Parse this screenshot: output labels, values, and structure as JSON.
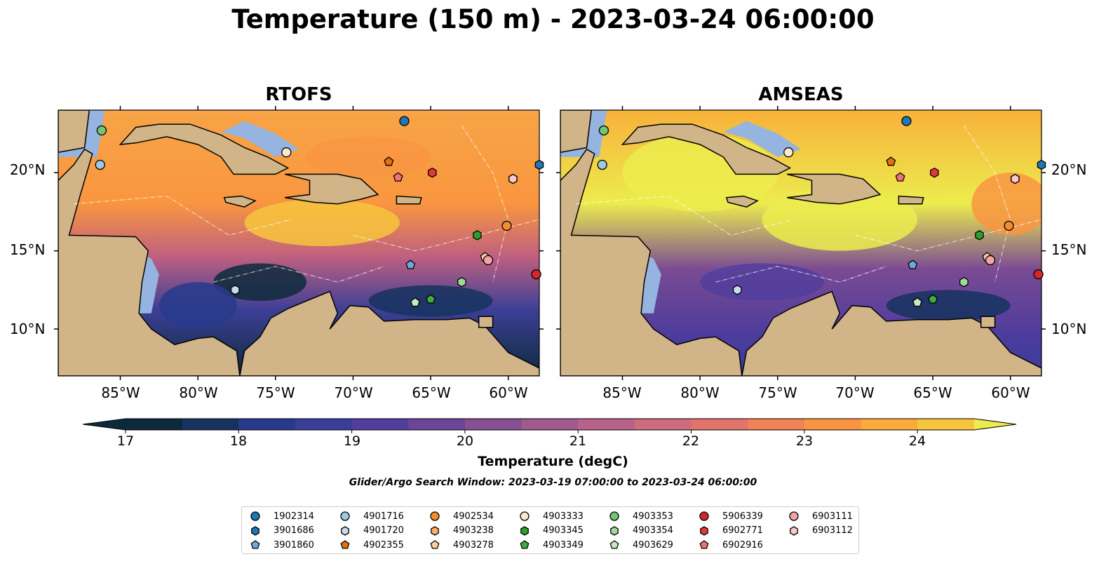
{
  "suptitle": "Temperature (150 m) - 2023-03-24 06:00:00",
  "panels": [
    {
      "title": "RTOFS",
      "model": "RTOFS"
    },
    {
      "title": "AMSEAS",
      "model": "AMSEAS"
    }
  ],
  "axes": {
    "lat_labels": [
      "20°N",
      "15°N",
      "10°N"
    ],
    "lon_labels": [
      "85°W",
      "80°W",
      "75°W",
      "70°W",
      "65°W",
      "60°W"
    ]
  },
  "colorbar": {
    "label": "Temperature (degC)",
    "ticks": [
      "17",
      "18",
      "19",
      "20",
      "21",
      "22",
      "23",
      "24"
    ],
    "colors": [
      "#0d2a3c",
      "#16325f",
      "#283a8c",
      "#3b3d9a",
      "#523e9c",
      "#6c4598",
      "#864f93",
      "#a05a8d",
      "#b8628a",
      "#cf6b7e",
      "#e1756e",
      "#f08255",
      "#f99542",
      "#fbab3a",
      "#f7c43d",
      "#ecec4e"
    ],
    "colormap": "thermal",
    "extend": "both"
  },
  "chart_data": {
    "type": "heatmap",
    "title": "Temperature (150 m) - 2023-03-24 06:00:00",
    "subtitle": "Glider/Argo Search Window: 2023-03-19 07:00:00 to 2023-03-24 06:00:00",
    "panels": [
      "RTOFS",
      "AMSEAS"
    ],
    "lon_range": [
      -89,
      -58
    ],
    "lat_range": [
      7,
      24
    ],
    "colorbar_range": [
      17,
      24.5
    ],
    "colorbar_label": "Temperature (degC)",
    "xticks": [
      "85°W",
      "80°W",
      "75°W",
      "70°W",
      "65°W",
      "60°W"
    ],
    "yticks": [
      "20°N",
      "15°N",
      "10°N"
    ],
    "floats": [
      {
        "id": "1902314",
        "lon": -66.7,
        "lat": 23.3,
        "color": "#1f77b4",
        "marker": "circle"
      },
      {
        "id": "3901686",
        "lon": -58.0,
        "lat": 20.5,
        "color": "#1f77b4",
        "marker": "hexagon"
      },
      {
        "id": "3901860",
        "lon": -66.3,
        "lat": 14.1,
        "color": "#6fa8dc",
        "marker": "pentagon"
      },
      {
        "id": "4901716",
        "lon": -86.3,
        "lat": 20.5,
        "color": "#9ecae1",
        "marker": "circle"
      },
      {
        "id": "4901720",
        "lon": -77.6,
        "lat": 12.5,
        "color": "#c6dbef",
        "marker": "hexagon"
      },
      {
        "id": "4902355",
        "lon": -67.7,
        "lat": 20.7,
        "color": "#e6700b",
        "marker": "pentagon"
      },
      {
        "id": "4902534",
        "lon": -60.1,
        "lat": 16.6,
        "color": "#f28e2b",
        "marker": "circle"
      },
      {
        "id": "4903238",
        "lon": -59.7,
        "lat": 19.6,
        "color": "#fdae6b",
        "marker": "hexagon"
      },
      {
        "id": "4903278",
        "lon": -61.5,
        "lat": 14.6,
        "color": "#fdd0a2",
        "marker": "pentagon"
      },
      {
        "id": "4903333",
        "lon": -74.3,
        "lat": 21.3,
        "color": "#fde7d0",
        "marker": "circle"
      },
      {
        "id": "4903345",
        "lon": -62.0,
        "lat": 16.0,
        "color": "#2ca02c",
        "marker": "hexagon"
      },
      {
        "id": "4903349",
        "lon": -65.0,
        "lat": 11.9,
        "color": "#3cae3c",
        "marker": "pentagon"
      },
      {
        "id": "4903353",
        "lon": -86.2,
        "lat": 22.7,
        "color": "#74c476",
        "marker": "circle"
      },
      {
        "id": "4903354",
        "lon": -63.0,
        "lat": 13.0,
        "color": "#a1d99b",
        "marker": "hexagon"
      },
      {
        "id": "4903629",
        "lon": -66.0,
        "lat": 11.7,
        "color": "#c7e9c0",
        "marker": "pentagon"
      },
      {
        "id": "5906339",
        "lon": -58.2,
        "lat": 13.5,
        "color": "#d62728",
        "marker": "circle"
      },
      {
        "id": "6902771",
        "lon": -64.9,
        "lat": 20.0,
        "color": "#e0393a",
        "marker": "hexagon"
      },
      {
        "id": "6902916",
        "lon": -67.1,
        "lat": 19.7,
        "color": "#f07074",
        "marker": "pentagon"
      },
      {
        "id": "6903111",
        "lon": -61.3,
        "lat": 14.4,
        "color": "#f4a3a5",
        "marker": "circle"
      },
      {
        "id": "6903112",
        "lon": -59.7,
        "lat": 19.6,
        "color": "#fbc9cb",
        "marker": "hexagon"
      }
    ]
  },
  "legend": {
    "columns": [
      [
        {
          "id": "1902314",
          "marker": "circle",
          "color": "#1f77b4"
        },
        {
          "id": "3901686",
          "marker": "hexagon",
          "color": "#1f77b4"
        },
        {
          "id": "3901860",
          "marker": "pentagon",
          "color": "#6fa8dc"
        }
      ],
      [
        {
          "id": "4901716",
          "marker": "circle",
          "color": "#9ecae1"
        },
        {
          "id": "4901720",
          "marker": "hexagon",
          "color": "#c6dbef"
        },
        {
          "id": "4902355",
          "marker": "pentagon",
          "color": "#e6700b"
        }
      ],
      [
        {
          "id": "4902534",
          "marker": "circle",
          "color": "#f28e2b"
        },
        {
          "id": "4903238",
          "marker": "hexagon",
          "color": "#fdae6b"
        },
        {
          "id": "4903278",
          "marker": "pentagon",
          "color": "#fdd0a2"
        }
      ],
      [
        {
          "id": "4903333",
          "marker": "circle",
          "color": "#fde7d0"
        },
        {
          "id": "4903345",
          "marker": "hexagon",
          "color": "#2ca02c"
        },
        {
          "id": "4903349",
          "marker": "pentagon",
          "color": "#3cae3c"
        }
      ],
      [
        {
          "id": "4903353",
          "marker": "circle",
          "color": "#74c476"
        },
        {
          "id": "4903354",
          "marker": "hexagon",
          "color": "#a1d99b"
        },
        {
          "id": "4903629",
          "marker": "pentagon",
          "color": "#c7e9c0"
        }
      ],
      [
        {
          "id": "5906339",
          "marker": "circle",
          "color": "#d62728"
        },
        {
          "id": "6902771",
          "marker": "hexagon",
          "color": "#e0393a"
        },
        {
          "id": "6902916",
          "marker": "pentagon",
          "color": "#f07074"
        }
      ],
      [
        {
          "id": "6903111",
          "marker": "circle",
          "color": "#f4a3a5"
        },
        {
          "id": "6903112",
          "marker": "hexagon",
          "color": "#fbc9cb"
        }
      ]
    ]
  },
  "colors": {
    "land": "#d1b487",
    "shallow_water": "#95b4df",
    "coast": "#000000"
  }
}
